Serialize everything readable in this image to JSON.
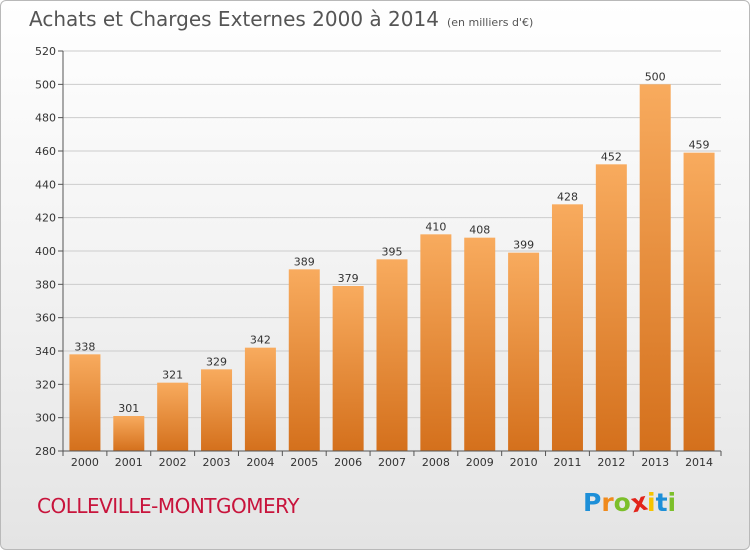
{
  "header": {
    "title": "Achats et Charges Externes 2000 à 2014",
    "unit": "(en milliers d'€)"
  },
  "footer": {
    "town": "COLLEVILLE-MONTGOMERY",
    "logo_letters": [
      {
        "char": "P",
        "color": "#1d8fd8"
      },
      {
        "char": "r",
        "color": "#f08a1c"
      },
      {
        "char": "o",
        "color": "#7cbf2a"
      },
      {
        "char": "x",
        "color": "#e2231a"
      },
      {
        "char": "i",
        "color": "#f5c400"
      },
      {
        "char": "t",
        "color": "#1d8fd8"
      },
      {
        "char": "i",
        "color": "#7cbf2a"
      }
    ]
  },
  "colors": {
    "bar_light": "#f8ab5e",
    "bar_dark": "#d4701c",
    "grid": "#cccccc"
  },
  "chart_data": {
    "type": "bar",
    "categories": [
      "2000",
      "2001",
      "2002",
      "2003",
      "2004",
      "2005",
      "2006",
      "2007",
      "2008",
      "2009",
      "2010",
      "2011",
      "2012",
      "2013",
      "2014"
    ],
    "values": [
      338,
      301,
      321,
      329,
      342,
      389,
      379,
      395,
      410,
      408,
      399,
      428,
      452,
      500,
      459
    ],
    "title": "Achats et Charges Externes 2000 à 2014",
    "ylim": [
      280,
      520
    ],
    "yticks": [
      280,
      300,
      320,
      340,
      360,
      380,
      400,
      420,
      440,
      460,
      480,
      500,
      520
    ],
    "grid": true
  }
}
